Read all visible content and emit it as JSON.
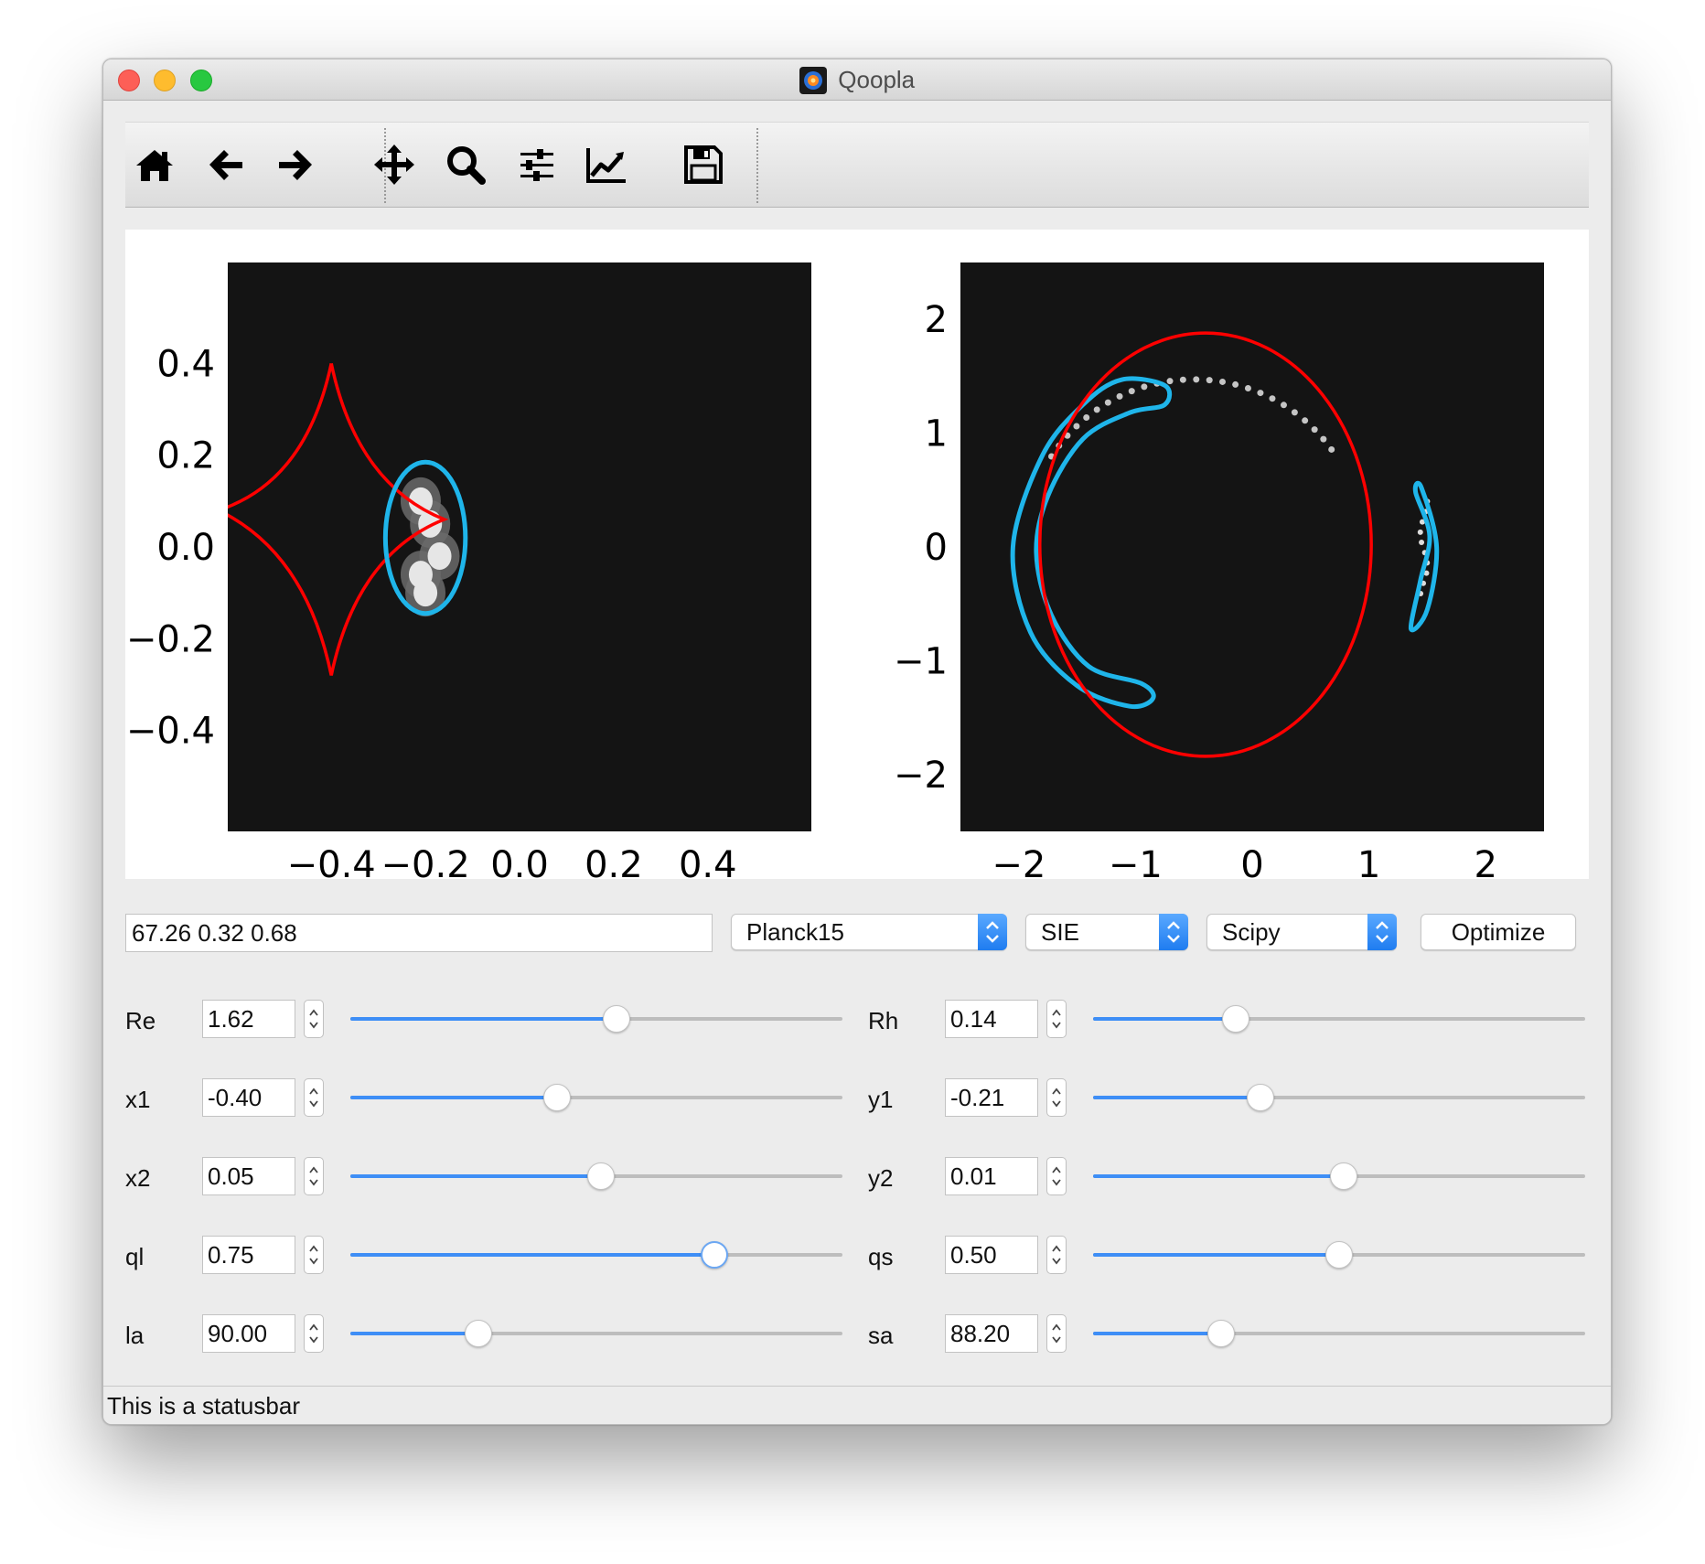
{
  "window": {
    "title": "Qoopla"
  },
  "toolbar": {
    "tools": [
      {
        "name": "home",
        "icon": "home-icon"
      },
      {
        "name": "back",
        "icon": "arrow-left-icon"
      },
      {
        "name": "forward",
        "icon": "arrow-right-icon"
      },
      {
        "name": "pan",
        "icon": "move-icon"
      },
      {
        "name": "zoom",
        "icon": "search-icon"
      },
      {
        "name": "subplots",
        "icon": "sliders-icon"
      },
      {
        "name": "axes",
        "icon": "chart-line-icon"
      },
      {
        "name": "save",
        "icon": "save-icon"
      }
    ]
  },
  "chart_data": [
    {
      "type": "scatter",
      "title": "",
      "xlabel": "",
      "ylabel": "",
      "xlim": [
        -0.62,
        0.62
      ],
      "ylim": [
        -0.62,
        0.62
      ],
      "xticks": [
        -0.4,
        -0.2,
        0.0,
        0.2,
        0.4
      ],
      "yticks": [
        0.4,
        0.2,
        0.0,
        -0.2,
        -0.4
      ],
      "xtick_labels": [
        "−0.4",
        "−0.2",
        "0.0",
        "0.2",
        "0.4"
      ],
      "ytick_labels": [
        "0.4",
        "0.2",
        "0.0",
        "−0.2",
        "−0.4"
      ],
      "background": "#141414",
      "caustic": {
        "color": "#ff0000",
        "cusps": [
          [
            -0.4,
            0.4
          ],
          [
            -0.4,
            -0.28
          ],
          [
            -0.16,
            0.06
          ],
          [
            -0.64,
            0.08
          ]
        ]
      },
      "source_ellipse": {
        "color": "#1fb5ea",
        "center": [
          -0.2,
          0.02
        ],
        "radii": [
          0.085,
          0.165
        ]
      },
      "source_blobs": [
        [
          -0.21,
          0.1
        ],
        [
          -0.19,
          0.05
        ],
        [
          -0.17,
          -0.02
        ],
        [
          -0.21,
          -0.06
        ],
        [
          -0.2,
          -0.1
        ]
      ]
    },
    {
      "type": "scatter",
      "title": "",
      "xlabel": "",
      "ylabel": "",
      "xlim": [
        -2.5,
        2.5
      ],
      "ylim": [
        -2.5,
        2.5
      ],
      "xticks": [
        -2,
        -1,
        0,
        1,
        2
      ],
      "yticks": [
        2,
        1,
        0,
        -1,
        -2
      ],
      "xtick_labels": [
        "−2",
        "−1",
        "0",
        "1",
        "2"
      ],
      "ytick_labels": [
        "2",
        "1",
        "0",
        "−1",
        "−2"
      ],
      "background": "#141414",
      "critical_curve": {
        "color": "#ff0000",
        "center": [
          -0.4,
          0.02
        ],
        "radii": [
          1.42,
          1.86
        ]
      },
      "arc_main": {
        "color": "#1fb5ea",
        "outline": [
          [
            -1.12,
            1.47
          ],
          [
            -0.75,
            1.42
          ],
          [
            -0.75,
            1.25
          ],
          [
            -1.05,
            1.18
          ],
          [
            -1.45,
            0.95
          ],
          [
            -1.75,
            0.45
          ],
          [
            -1.85,
            -0.05
          ],
          [
            -1.72,
            -0.6
          ],
          [
            -1.4,
            -1.05
          ],
          [
            -0.95,
            -1.2
          ],
          [
            -0.85,
            -1.33
          ],
          [
            -1.05,
            -1.4
          ],
          [
            -1.5,
            -1.22
          ],
          [
            -1.9,
            -0.75
          ],
          [
            -2.05,
            0.0
          ],
          [
            -1.8,
            0.8
          ],
          [
            -1.45,
            1.25
          ]
        ]
      },
      "arc_counter": {
        "color": "#1fb5ea",
        "outline": [
          [
            1.45,
            0.52
          ],
          [
            1.58,
            0.0
          ],
          [
            1.5,
            -0.55
          ],
          [
            1.36,
            -0.72
          ],
          [
            1.44,
            -0.3
          ],
          [
            1.52,
            0.1
          ],
          [
            1.4,
            0.48
          ]
        ]
      }
    }
  ],
  "controls": {
    "cosmology_input": "67.26 0.32 0.68",
    "cosmology_select": "Planck15",
    "model_select": "SIE",
    "optimizer_select": "Scipy",
    "optimize_label": "Optimize",
    "params_left": [
      {
        "label": "Re",
        "value": "1.62",
        "fraction": 0.54
      },
      {
        "label": "x1",
        "value": "-0.40",
        "fraction": 0.42
      },
      {
        "label": "x2",
        "value": "0.05",
        "fraction": 0.51
      },
      {
        "label": "ql",
        "value": "0.75",
        "fraction": 0.74,
        "focused": true
      },
      {
        "label": "la",
        "value": "90.00",
        "fraction": 0.26
      }
    ],
    "params_right": [
      {
        "label": "Rh",
        "value": "0.14",
        "fraction": 0.29
      },
      {
        "label": "y1",
        "value": "-0.21",
        "fraction": 0.34
      },
      {
        "label": "y2",
        "value": "0.01",
        "fraction": 0.51
      },
      {
        "label": "qs",
        "value": "0.50",
        "fraction": 0.5
      },
      {
        "label": "sa",
        "value": "88.20",
        "fraction": 0.26
      }
    ]
  },
  "statusbar": {
    "text": "This is a statusbar"
  },
  "colors": {
    "accent": "#3e8ef6",
    "caustic_red": "#ff0000",
    "source_blue": "#1fb5ea",
    "plot_background": "#141414"
  }
}
